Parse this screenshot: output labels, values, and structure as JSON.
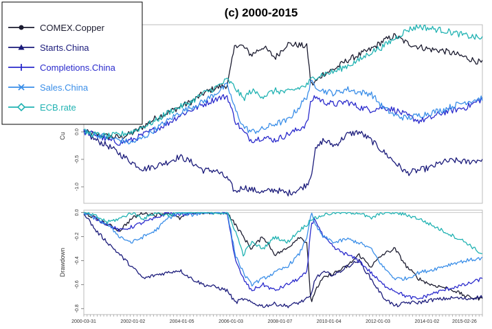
{
  "chart_data": {
    "type": "line",
    "title": "(c) 2000-2015",
    "legend_position": "top-left",
    "grid": false,
    "x_ticks": [
      "2000-03-31",
      "2002-01-02",
      "2004-01-05",
      "2006-01-03",
      "2008-01-07",
      "2010-01-04",
      "2012-01-03",
      "2014-01-02",
      "2015-02-26"
    ],
    "panels": [
      {
        "name": "cumulative",
        "ylabel": "Cu",
        "y_ticks": [
          "0.0",
          "-0.5",
          "-1.0"
        ],
        "y_tick_values": [
          0,
          -0.5,
          -1.0
        ],
        "ylim": [
          -1.3,
          1.95
        ],
        "x": [
          0,
          0.03,
          0.06,
          0.09,
          0.12,
          0.15,
          0.18,
          0.21,
          0.24,
          0.27,
          0.3,
          0.33,
          0.36,
          0.38,
          0.4,
          0.42,
          0.45,
          0.48,
          0.51,
          0.54,
          0.56,
          0.57,
          0.58,
          0.6,
          0.63,
          0.66,
          0.69,
          0.72,
          0.75,
          0.78,
          0.81,
          0.84,
          0.87,
          0.9,
          0.93,
          0.96,
          1.0
        ],
        "series": [
          {
            "name": "COMEX.Copper",
            "color": "#1b1b2f",
            "marker": "circle",
            "values": [
              0.0,
              -0.05,
              -0.08,
              -0.1,
              -0.03,
              0.1,
              0.25,
              0.35,
              0.45,
              0.55,
              0.7,
              0.8,
              0.85,
              1.6,
              1.55,
              1.4,
              1.55,
              1.35,
              1.6,
              1.58,
              1.55,
              0.85,
              0.9,
              1.05,
              1.15,
              1.3,
              1.4,
              1.5,
              1.65,
              1.75,
              1.62,
              1.55,
              1.5,
              1.48,
              1.42,
              1.35,
              1.25
            ]
          },
          {
            "name": "Starts.China",
            "color": "#1a1a7a",
            "marker": "triangle",
            "values": [
              0.0,
              -0.15,
              -0.25,
              -0.4,
              -0.55,
              -0.68,
              -0.62,
              -0.55,
              -0.45,
              -0.55,
              -0.7,
              -0.7,
              -0.85,
              -1.1,
              -1.0,
              -1.05,
              -1.1,
              -1.05,
              -1.12,
              -1.05,
              -0.95,
              -0.8,
              -0.35,
              -0.15,
              -0.25,
              -0.05,
              0.0,
              -0.15,
              -0.35,
              -0.55,
              -0.75,
              -0.7,
              -0.65,
              -0.55,
              -0.52,
              -0.55,
              -0.5
            ]
          },
          {
            "name": "Completions.China",
            "color": "#2a2acc",
            "marker": "plus",
            "values": [
              0.0,
              -0.05,
              -0.15,
              -0.2,
              -0.15,
              -0.05,
              0.05,
              0.15,
              0.3,
              0.4,
              0.5,
              0.6,
              0.65,
              0.2,
              0.0,
              -0.15,
              -0.1,
              -0.15,
              -0.05,
              0.05,
              0.15,
              0.55,
              0.65,
              0.55,
              0.5,
              0.55,
              0.45,
              0.4,
              0.45,
              0.4,
              0.3,
              0.2,
              0.25,
              0.35,
              0.4,
              0.45,
              0.6
            ]
          },
          {
            "name": "Sales.China",
            "color": "#3a8ee8",
            "marker": "x",
            "values": [
              0.0,
              -0.05,
              -0.1,
              -0.15,
              -0.2,
              -0.1,
              0.05,
              0.2,
              0.35,
              0.45,
              0.55,
              0.7,
              0.85,
              0.4,
              0.1,
              0.0,
              0.05,
              0.15,
              0.2,
              0.45,
              0.65,
              0.9,
              0.85,
              0.75,
              0.7,
              0.78,
              0.72,
              0.7,
              0.45,
              0.3,
              0.25,
              0.3,
              0.35,
              0.4,
              0.48,
              0.55,
              0.62
            ]
          },
          {
            "name": "ECB.rate",
            "color": "#20b2b2",
            "marker": "diamond",
            "values": [
              0.0,
              -0.05,
              -0.08,
              -0.05,
              0.0,
              0.1,
              0.2,
              0.35,
              0.45,
              0.55,
              0.7,
              0.8,
              0.95,
              0.8,
              0.6,
              0.75,
              0.65,
              0.75,
              0.72,
              0.8,
              0.85,
              0.95,
              1.0,
              1.05,
              1.1,
              1.2,
              1.3,
              1.45,
              1.55,
              1.7,
              1.85,
              1.92,
              1.88,
              1.85,
              1.8,
              1.75,
              1.7
            ]
          }
        ]
      },
      {
        "name": "drawdown",
        "ylabel": "Drawdown",
        "y_ticks": [
          "0.0",
          "-0.2",
          "-0.4",
          "-0.6",
          "-0.8"
        ],
        "y_tick_values": [
          0,
          -0.2,
          -0.4,
          -0.6,
          -0.8
        ],
        "ylim": [
          -0.85,
          0.02
        ],
        "x": [
          0,
          0.03,
          0.06,
          0.09,
          0.12,
          0.15,
          0.18,
          0.21,
          0.24,
          0.27,
          0.3,
          0.33,
          0.36,
          0.38,
          0.4,
          0.42,
          0.45,
          0.48,
          0.51,
          0.54,
          0.56,
          0.57,
          0.58,
          0.6,
          0.63,
          0.66,
          0.69,
          0.72,
          0.75,
          0.78,
          0.81,
          0.84,
          0.87,
          0.9,
          0.93,
          0.96,
          1.0
        ],
        "series": [
          {
            "name": "COMEX.Copper",
            "color": "#1b1b2f",
            "values": [
              0.0,
              -0.05,
              -0.1,
              -0.15,
              -0.05,
              0.0,
              -0.02,
              0.0,
              -0.05,
              0.0,
              0.0,
              0.0,
              0.0,
              -0.1,
              -0.2,
              -0.3,
              -0.2,
              -0.35,
              -0.3,
              -0.2,
              -0.25,
              -0.78,
              -0.65,
              -0.55,
              -0.5,
              -0.45,
              -0.35,
              -0.45,
              -0.35,
              -0.3,
              -0.45,
              -0.55,
              -0.6,
              -0.62,
              -0.65,
              -0.7,
              -0.72
            ]
          },
          {
            "name": "Starts.China",
            "color": "#1a1a7a",
            "values": [
              0.0,
              -0.15,
              -0.25,
              -0.35,
              -0.45,
              -0.55,
              -0.52,
              -0.5,
              -0.48,
              -0.55,
              -0.6,
              -0.62,
              -0.65,
              -0.75,
              -0.72,
              -0.75,
              -0.78,
              -0.76,
              -0.78,
              -0.75,
              -0.72,
              -0.7,
              -0.55,
              -0.5,
              -0.52,
              -0.45,
              -0.4,
              -0.55,
              -0.7,
              -0.78,
              -0.75,
              -0.75,
              -0.73,
              -0.72,
              -0.71,
              -0.72,
              -0.7
            ]
          },
          {
            "name": "Completions.China",
            "color": "#2a2acc",
            "values": [
              0.0,
              -0.05,
              -0.1,
              -0.15,
              -0.12,
              -0.08,
              -0.05,
              0.0,
              -0.02,
              0.0,
              0.0,
              0.0,
              0.0,
              -0.4,
              -0.55,
              -0.65,
              -0.6,
              -0.65,
              -0.6,
              -0.55,
              -0.5,
              -0.1,
              -0.05,
              -0.2,
              -0.3,
              -0.35,
              -0.4,
              -0.5,
              -0.6,
              -0.65,
              -0.7,
              -0.72,
              -0.68,
              -0.65,
              -0.62,
              -0.6,
              -0.55
            ]
          },
          {
            "name": "Sales.China",
            "color": "#3a8ee8",
            "values": [
              0.0,
              -0.05,
              -0.1,
              -0.2,
              -0.25,
              -0.2,
              -0.15,
              -0.05,
              0.0,
              -0.02,
              0.0,
              0.0,
              0.0,
              -0.35,
              -0.5,
              -0.6,
              -0.55,
              -0.5,
              -0.45,
              -0.35,
              -0.2,
              0.0,
              -0.1,
              -0.2,
              -0.25,
              -0.22,
              -0.25,
              -0.3,
              -0.45,
              -0.55,
              -0.55,
              -0.5,
              -0.48,
              -0.45,
              -0.42,
              -0.4,
              -0.38
            ]
          },
          {
            "name": "ECB.rate",
            "color": "#20b2b2",
            "values": [
              0.0,
              -0.03,
              -0.08,
              -0.05,
              0.0,
              -0.05,
              0.0,
              -0.02,
              0.0,
              0.0,
              0.0,
              0.0,
              0.0,
              -0.15,
              -0.35,
              -0.25,
              -0.3,
              -0.2,
              -0.25,
              -0.15,
              -0.1,
              -0.05,
              -0.05,
              -0.02,
              0.0,
              0.0,
              0.0,
              -0.05,
              0.0,
              0.0,
              -0.02,
              -0.05,
              -0.1,
              -0.15,
              -0.2,
              -0.25,
              -0.35
            ]
          }
        ]
      }
    ]
  }
}
